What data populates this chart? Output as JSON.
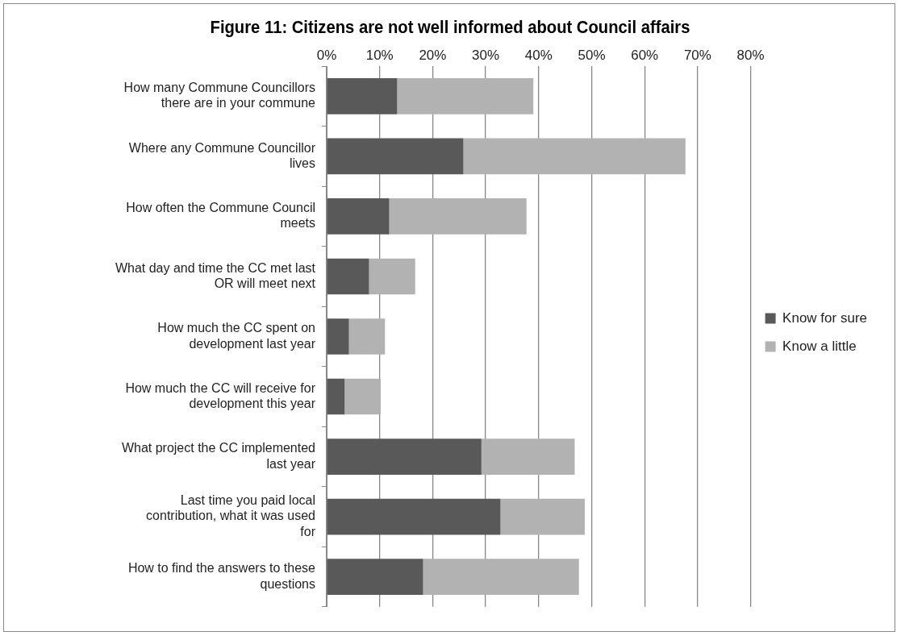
{
  "chart_data": {
    "type": "bar",
    "orientation": "horizontal",
    "stacked": true,
    "title": "Figure 11:  Citizens are not well informed about Council affairs",
    "categories": [
      "How many Commune Councillors there are in your commune",
      "Where any Commune Councillor lives",
      "How often the Commune Council meets",
      "What day and time the CC met last OR will meet next",
      "How much the CC spent on development last year",
      "How much the CC will receive for development this year",
      "What project the CC implemented last year",
      "Last time you paid local contribution, what it was used for",
      "How to find the answers to these questions"
    ],
    "series": [
      {
        "name": "Know for sure",
        "color": "#595959",
        "values": [
          13.3,
          25.8,
          11.8,
          8,
          4.2,
          3.4,
          29.2,
          32.8,
          18.2
        ]
      },
      {
        "name": "Know a little",
        "color": "#b2b2b2",
        "values": [
          25.7,
          41.9,
          25.9,
          8.7,
          6.8,
          6.8,
          17.6,
          15.9,
          29.4
        ]
      }
    ],
    "xlim": [
      0,
      80
    ],
    "xticks": [
      {
        "value": 0,
        "label": "0%"
      },
      {
        "value": 10,
        "label": "10%"
      },
      {
        "value": 20,
        "label": "20%"
      },
      {
        "value": 30,
        "label": "30%"
      },
      {
        "value": 40,
        "label": "40%"
      },
      {
        "value": 50,
        "label": "50%"
      },
      {
        "value": 60,
        "label": "60%"
      },
      {
        "value": 70,
        "label": "70%"
      },
      {
        "value": 80,
        "label": "80%"
      }
    ],
    "grid": "x",
    "legend": "right"
  }
}
